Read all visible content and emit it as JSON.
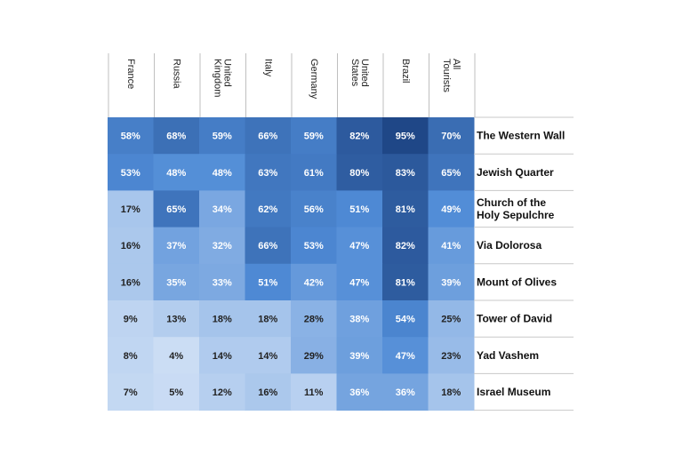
{
  "chart_data": {
    "type": "heatmap",
    "title": "",
    "columns": [
      "France",
      "Russia",
      "United Kingdom",
      "Italy",
      "Germany",
      "United States",
      "Brazil",
      "All Tourists"
    ],
    "rows": [
      "The Western Wall",
      "Jewish Quarter",
      "Church of the Holy Sepulchre",
      "Via Dolorosa",
      "Mount of Olives",
      "Tower of David",
      "Yad Vashem",
      "Israel Museum"
    ],
    "values": [
      [
        58,
        68,
        59,
        66,
        59,
        82,
        95,
        70
      ],
      [
        53,
        48,
        48,
        63,
        61,
        80,
        83,
        65
      ],
      [
        17,
        65,
        34,
        62,
        56,
        51,
        81,
        49
      ],
      [
        16,
        37,
        32,
        66,
        53,
        47,
        82,
        41
      ],
      [
        16,
        35,
        33,
        51,
        42,
        47,
        81,
        39
      ],
      [
        9,
        13,
        18,
        18,
        28,
        38,
        54,
        25
      ],
      [
        8,
        4,
        14,
        14,
        29,
        39,
        47,
        23
      ],
      [
        7,
        5,
        12,
        16,
        11,
        36,
        36,
        18
      ]
    ],
    "value_suffix": "%",
    "color_scale": {
      "low": "#d6e4f7",
      "mid": "#4f8bd6",
      "high": "#1a3f7e"
    },
    "legend": "none",
    "grid": false
  }
}
